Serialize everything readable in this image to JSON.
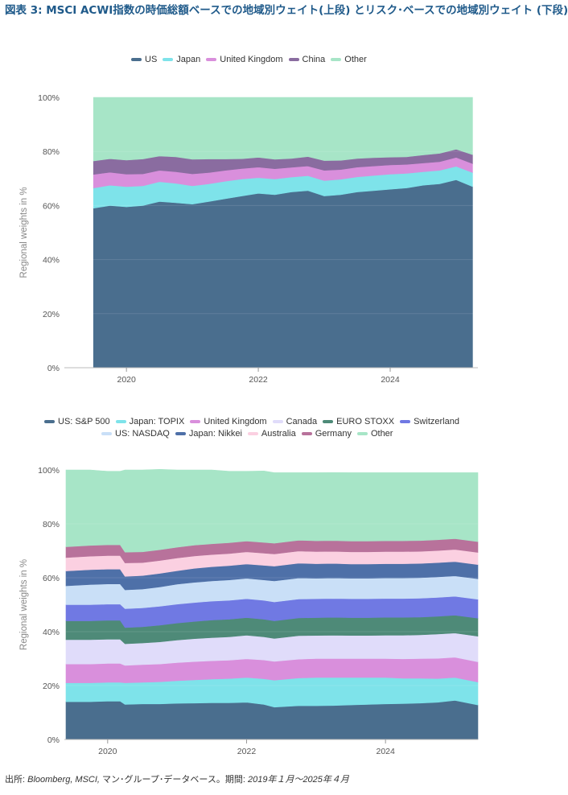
{
  "title": "図表 3: MSCI ACWI指数の時価総額ベースでの地域別ウェイト(上段) とリスク･ベースでの地域別ウェイト (下段)",
  "source": {
    "label": "出所: ",
    "text": "Bloomberg, MSCI,",
    "suffix": " マン･グループ･データベース。期間: ",
    "period": "2019年１月～2025年４月"
  },
  "chart_data": [
    {
      "type": "area",
      "stacked": true,
      "ylabel": "Regional weights in %",
      "xlabel": "",
      "ylim": [
        0,
        100
      ],
      "yticks": [
        "0%",
        "20%",
        "40%",
        "60%",
        "80%",
        "100%"
      ],
      "xticks": [
        "2020",
        "2022",
        "2024"
      ],
      "xlim": [
        2019.4,
        2025.33
      ],
      "grid": true,
      "legend_position": "top",
      "x": [
        2019.5,
        2019.75,
        2020.0,
        2020.25,
        2020.5,
        2020.75,
        2021.0,
        2021.25,
        2021.5,
        2021.75,
        2022.0,
        2022.25,
        2022.5,
        2022.75,
        2023.0,
        2023.25,
        2023.5,
        2023.75,
        2024.0,
        2024.25,
        2024.5,
        2024.75,
        2025.0,
        2025.25
      ],
      "series": [
        {
          "name": "US",
          "color": "#4a6e8e",
          "values": [
            59,
            60,
            59.5,
            60,
            61.5,
            61,
            60.5,
            61.5,
            62.5,
            63.5,
            64.5,
            64,
            65,
            65.5,
            63.5,
            64,
            65,
            65.5,
            66,
            66.5,
            67.5,
            68,
            69.5,
            67
          ]
        },
        {
          "name": "Japan",
          "color": "#7ee3ea",
          "values": [
            7.5,
            7.5,
            7.5,
            7.3,
            7.3,
            7.2,
            6.8,
            6.5,
            6.5,
            6.3,
            5.8,
            5.8,
            5.5,
            5.5,
            5.7,
            5.7,
            5.6,
            5.6,
            5.6,
            5.4,
            5,
            5,
            5,
            5.2
          ]
        },
        {
          "name": "United Kingdom",
          "color": "#d98fdc",
          "values": [
            5,
            4.8,
            4.6,
            4.4,
            4.2,
            4.3,
            4.4,
            4.2,
            4.0,
            3.9,
            3.9,
            3.8,
            3.6,
            3.6,
            3.8,
            3.6,
            3.6,
            3.5,
            3.4,
            3.3,
            3.2,
            3.2,
            3.3,
            3.3
          ]
        },
        {
          "name": "China",
          "color": "#8a6ca0",
          "values": [
            5,
            5,
            5.2,
            5.5,
            5.3,
            5.5,
            5.4,
            5.0,
            4.2,
            3.6,
            3.6,
            3.5,
            3.3,
            3.5,
            3.6,
            3.4,
            3.2,
            3.1,
            2.9,
            2.8,
            3.0,
            3.1,
            3.0,
            3.3
          ]
        },
        {
          "name": "Other",
          "color": "#a7e5c7",
          "values": [
            23.5,
            22.7,
            23.2,
            22.8,
            21.7,
            22,
            22.9,
            22.8,
            22.8,
            22.7,
            22.2,
            22.9,
            22.6,
            21.9,
            23.4,
            23.3,
            22.6,
            22.3,
            22.1,
            22.0,
            21.3,
            20.7,
            19.2,
            21.2
          ]
        }
      ]
    },
    {
      "type": "area",
      "stacked": true,
      "ylabel": "Regional weights in %",
      "xlabel": "",
      "ylim": [
        0,
        100
      ],
      "yticks": [
        "0%",
        "20%",
        "40%",
        "60%",
        "80%",
        "100%"
      ],
      "xticks": [
        "2020",
        "2022",
        "2024"
      ],
      "xlim": [
        2019.4,
        2025.33
      ],
      "grid": true,
      "legend_position": "top",
      "x": [
        2019.4,
        2019.75,
        2020.0,
        2020.18,
        2020.25,
        2020.5,
        2020.75,
        2021.0,
        2021.25,
        2021.5,
        2021.75,
        2022.0,
        2022.25,
        2022.4,
        2022.75,
        2023.0,
        2023.25,
        2023.5,
        2023.75,
        2024.0,
        2024.25,
        2024.5,
        2024.75,
        2025.0,
        2025.33
      ],
      "series": [
        {
          "name": "US: S&P 500",
          "color": "#4a6e8e",
          "values": [
            14,
            14,
            14.2,
            14.2,
            13,
            13.2,
            13.2,
            13.4,
            13.5,
            13.6,
            13.6,
            13.8,
            13,
            12,
            12.5,
            12.5,
            12.6,
            12.8,
            13,
            13.2,
            13.3,
            13.5,
            13.8,
            14.5,
            12.8
          ]
        },
        {
          "name": "Japan: TOPIX",
          "color": "#7ee3ea",
          "values": [
            7,
            7,
            7,
            7,
            8,
            8,
            8.2,
            8.4,
            8.6,
            8.8,
            9,
            9.2,
            9.5,
            10,
            10.3,
            10.5,
            10.4,
            10.2,
            10,
            9.8,
            9.4,
            9.2,
            8.8,
            8.5,
            8.5
          ]
        },
        {
          "name": "United Kingdom",
          "color": "#d98fdc",
          "values": [
            7,
            7,
            7,
            7,
            6.5,
            6.6,
            6.6,
            6.7,
            6.8,
            6.8,
            6.8,
            6.9,
            7,
            7,
            7,
            7,
            7,
            7,
            7,
            7,
            7.2,
            7.3,
            7.5,
            7.5,
            7.5
          ]
        },
        {
          "name": "Canada",
          "color": "#e0dcfa",
          "values": [
            9,
            9,
            9,
            9,
            8,
            8,
            8.2,
            8.4,
            8.5,
            8.6,
            8.7,
            8.8,
            8.6,
            8.5,
            8.7,
            8.6,
            8.7,
            8.6,
            8.6,
            8.7,
            8.8,
            8.8,
            9,
            9,
            9.5
          ]
        },
        {
          "name": "EURO STOXX",
          "color": "#4e8a78",
          "values": [
            7,
            7,
            7,
            7,
            6,
            6,
            6.2,
            6.3,
            6.4,
            6.5,
            6.5,
            6.5,
            6.5,
            6.5,
            6.6,
            6.6,
            6.6,
            6.6,
            6.6,
            6.6,
            6.6,
            6.6,
            6.6,
            6.6,
            6.7
          ]
        },
        {
          "name": "Switzerland",
          "color": "#7079e3",
          "values": [
            6,
            6,
            6,
            6,
            7,
            7,
            7,
            7,
            7,
            7,
            7,
            7,
            7,
            7,
            7,
            7,
            7,
            7,
            7,
            7,
            7,
            7,
            7,
            7,
            7
          ]
        },
        {
          "name": "US: NASDAQ",
          "color": "#c9dff7",
          "values": [
            7,
            7.5,
            7.5,
            7.5,
            7,
            7,
            7.2,
            7.4,
            7.5,
            7.5,
            7.6,
            7.6,
            7.6,
            7.8,
            7.8,
            7.6,
            7.6,
            7.6,
            7.6,
            7.6,
            7.6,
            7.6,
            7.6,
            7.6,
            7.6
          ]
        },
        {
          "name": "Japan: Nikkei",
          "color": "#4e70a8",
          "values": [
            5.5,
            5.5,
            5.5,
            5.5,
            5,
            5,
            5,
            5,
            5.2,
            5.3,
            5.3,
            5.3,
            5.4,
            5.5,
            5.5,
            5.4,
            5.4,
            5.3,
            5.3,
            5.3,
            5.3,
            5.3,
            5.3,
            5.3,
            5.3
          ]
        },
        {
          "name": "Australia",
          "color": "#fbd0e1",
          "values": [
            5,
            5,
            5,
            5,
            5,
            4.8,
            4.8,
            4.7,
            4.6,
            4.5,
            4.5,
            4.5,
            4.5,
            4.5,
            4.5,
            4.5,
            4.5,
            4.5,
            4.5,
            4.5,
            4.5,
            4.5,
            4.5,
            4.5,
            4.5
          ]
        },
        {
          "name": "Germany",
          "color": "#b8729b",
          "values": [
            4,
            4,
            4,
            4,
            4,
            4,
            4,
            4,
            4,
            4,
            4,
            4,
            4,
            4,
            4,
            4,
            4,
            4,
            4,
            4,
            4,
            4,
            4,
            4,
            4
          ]
        },
        {
          "name": "Other",
          "color": "#a7e5c7",
          "values": [
            28.5,
            28,
            27.3,
            27.3,
            30.5,
            30.4,
            29.8,
            28.7,
            27.9,
            27.4,
            26.5,
            25.9,
            26.5,
            26.2,
            25.1,
            25.3,
            25.2,
            25.4,
            25.4,
            25.3,
            25.3,
            25.2,
            24.9,
            24.5,
            25.6
          ]
        }
      ]
    }
  ]
}
